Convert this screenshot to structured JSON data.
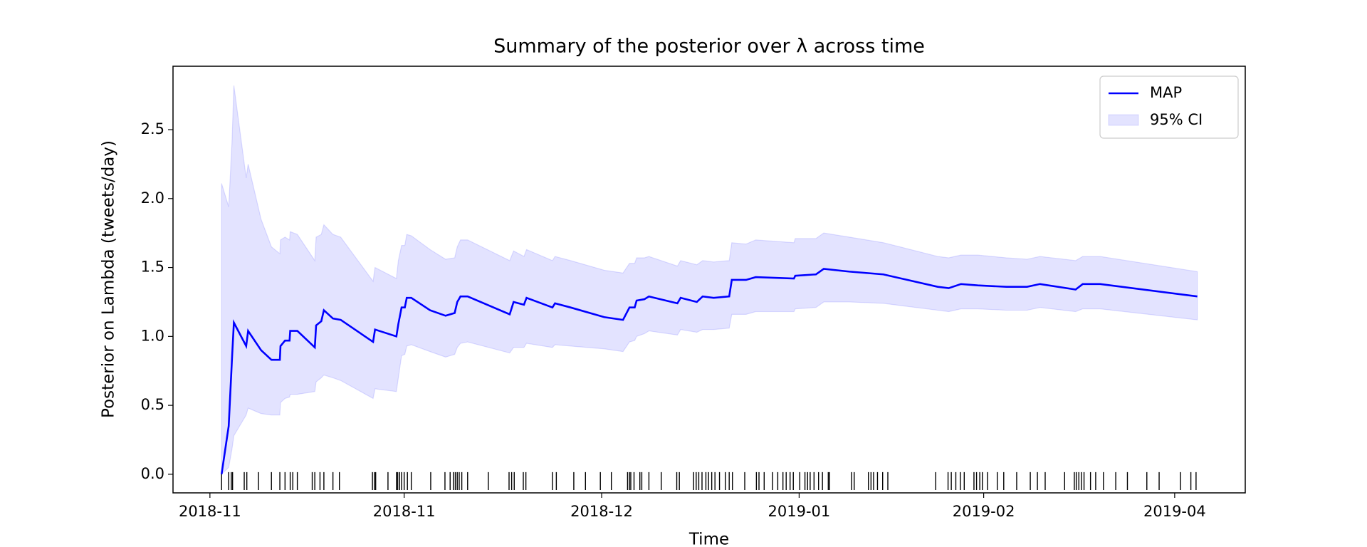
{
  "chart_data": {
    "type": "line",
    "title": "Summary of the posterior over λ across time",
    "xlabel": "Time",
    "ylabel": "Posterior on Lambda (tweets/day)",
    "legend": "upper right",
    "x": [
      1.8,
      2.9,
      3.4,
      3.7,
      5.6,
      5.9,
      7.9,
      9.5,
      10.8,
      10.9,
      11.6,
      12.3,
      12.4,
      13.5,
      16.2,
      16.4,
      17.2,
      17.6,
      19.0,
      20.2,
      25.2,
      25.5,
      28.8,
      29.1,
      29.6,
      30.1,
      30.4,
      31.1,
      34.0,
      36.4,
      37.8,
      38.2,
      38.7,
      39.8,
      46.3,
      46.9,
      48.5,
      48.9,
      52.9,
      53.3,
      55.7,
      60.9,
      63.8,
      64.8,
      65.6,
      65.9,
      67.1,
      67.8,
      72.2,
      72.7,
      75.2,
      76.1,
      77.8,
      80.2,
      80.6,
      82.8,
      84.3,
      90.2,
      90.4,
      93.6,
      94.8,
      98.8,
      104,
      112.4,
      114.1,
      116,
      118.6,
      123,
      126.2,
      128.2,
      133.7,
      134.8,
      137.5,
      152.5
    ],
    "series": [
      {
        "name": "MAP",
        "color": "#0000ff",
        "values": [
          0,
          0.35,
          0.83,
          1.1,
          0.93,
          1.04,
          0.9,
          0.83,
          0.83,
          0.93,
          0.97,
          0.97,
          1.04,
          1.04,
          0.92,
          1.08,
          1.11,
          1.19,
          1.13,
          1.12,
          0.96,
          1.05,
          1.0,
          1.09,
          1.21,
          1.21,
          1.28,
          1.28,
          1.19,
          1.15,
          1.17,
          1.25,
          1.29,
          1.29,
          1.16,
          1.25,
          1.23,
          1.28,
          1.21,
          1.24,
          1.21,
          1.14,
          1.12,
          1.21,
          1.21,
          1.26,
          1.27,
          1.29,
          1.24,
          1.28,
          1.25,
          1.29,
          1.28,
          1.29,
          1.41,
          1.41,
          1.43,
          1.42,
          1.44,
          1.45,
          1.49,
          1.47,
          1.45,
          1.36,
          1.35,
          1.38,
          1.37,
          1.36,
          1.36,
          1.38,
          1.34,
          1.38,
          1.38,
          1.29
        ]
      }
    ],
    "band": {
      "name": "95% CI",
      "color": "#0000ff",
      "upper": [
        2.11,
        1.94,
        2.4,
        2.82,
        2.15,
        2.25,
        1.85,
        1.65,
        1.6,
        1.7,
        1.72,
        1.7,
        1.76,
        1.74,
        1.55,
        1.72,
        1.74,
        1.81,
        1.74,
        1.72,
        1.4,
        1.5,
        1.42,
        1.55,
        1.66,
        1.66,
        1.74,
        1.73,
        1.63,
        1.56,
        1.57,
        1.65,
        1.7,
        1.7,
        1.55,
        1.62,
        1.58,
        1.63,
        1.55,
        1.58,
        1.55,
        1.48,
        1.46,
        1.53,
        1.53,
        1.57,
        1.57,
        1.58,
        1.51,
        1.55,
        1.52,
        1.55,
        1.54,
        1.55,
        1.68,
        1.67,
        1.7,
        1.68,
        1.71,
        1.71,
        1.75,
        1.72,
        1.68,
        1.58,
        1.57,
        1.59,
        1.59,
        1.57,
        1.56,
        1.58,
        1.55,
        1.58,
        1.58,
        1.47
      ],
      "lower": [
        0,
        0.05,
        0.18,
        0.28,
        0.43,
        0.48,
        0.44,
        0.43,
        0.43,
        0.52,
        0.55,
        0.56,
        0.58,
        0.58,
        0.6,
        0.67,
        0.7,
        0.72,
        0.7,
        0.68,
        0.55,
        0.62,
        0.6,
        0.7,
        0.86,
        0.87,
        0.93,
        0.94,
        0.89,
        0.85,
        0.87,
        0.92,
        0.95,
        0.96,
        0.88,
        0.92,
        0.92,
        0.95,
        0.92,
        0.94,
        0.93,
        0.91,
        0.89,
        0.96,
        0.97,
        1.0,
        1.02,
        1.04,
        1.01,
        1.05,
        1.03,
        1.05,
        1.05,
        1.06,
        1.16,
        1.16,
        1.18,
        1.18,
        1.2,
        1.21,
        1.25,
        1.25,
        1.24,
        1.19,
        1.18,
        1.2,
        1.2,
        1.19,
        1.19,
        1.21,
        1.18,
        1.2,
        1.2,
        1.12
      ]
    },
    "events": [
      1.8,
      2.9,
      3.3,
      3.5,
      5.3,
      5.7,
      7.5,
      9.5,
      10.8,
      11.6,
      12.4,
      12.8,
      13.5,
      15.8,
      16.2,
      17.0,
      17.6,
      19.0,
      20.0,
      25.1,
      25.4,
      25.6,
      27.5,
      28.8,
      29.0,
      29.3,
      29.6,
      30.0,
      30.5,
      31.1,
      34.1,
      36.3,
      37.1,
      37.6,
      37.9,
      38.2,
      38.5,
      38.9,
      39.8,
      43.0,
      46.2,
      46.6,
      47.0,
      48.4,
      48.8,
      52.9,
      53.5,
      56.2,
      58.0,
      60.3,
      62.0,
      64.5,
      64.8,
      65.0,
      65.5,
      66.4,
      66.7,
      67.8,
      69.7,
      72.1,
      72.5,
      74.7,
      75.1,
      75.5,
      76.0,
      76.6,
      77.0,
      77.5,
      78.0,
      78.7,
      79.6,
      80.2,
      80.7,
      82.6,
      84.4,
      84.8,
      85.6,
      86.9,
      87.7,
      88.5,
      89.0,
      89.6,
      90.1,
      91.1,
      91.9,
      92.3,
      92.7,
      93.3,
      94.0,
      94.6,
      95.5,
      95.7,
      99.1,
      99.5,
      101.7,
      102.1,
      102.5,
      103.1,
      103.9,
      104.7,
      112.1,
      114.0,
      114.5,
      115.2,
      115.9,
      116.5,
      118.0,
      118.4,
      118.9,
      119.3,
      120.1,
      121.6,
      122.6,
      124.6,
      126.7,
      127.8,
      129.0,
      132.0,
      133.5,
      133.8,
      134.2,
      134.6,
      135.0,
      136.0,
      136.8,
      138.0,
      139.9,
      141.7,
      144.7,
      146.6,
      149.9,
      151.5,
      152.3
    ],
    "xlim": [
      -5.7,
      159.9
    ],
    "ylim": [
      -0.135,
      2.96
    ],
    "xticks": [
      {
        "value": 0,
        "label": "2018-11"
      },
      {
        "value": 30,
        "label": "2018-11"
      },
      {
        "value": 60.5,
        "label": "2018-12"
      },
      {
        "value": 91,
        "label": "2019-01"
      },
      {
        "value": 119.5,
        "label": "2019-02"
      },
      {
        "value": 149,
        "label": "2019-04"
      }
    ],
    "yticks": [
      {
        "value": 0,
        "label": "0.0"
      },
      0.5,
      {
        "value": 1,
        "label": "1.0"
      },
      1.5,
      {
        "value": 2,
        "label": "2.0"
      },
      2.5
    ]
  }
}
